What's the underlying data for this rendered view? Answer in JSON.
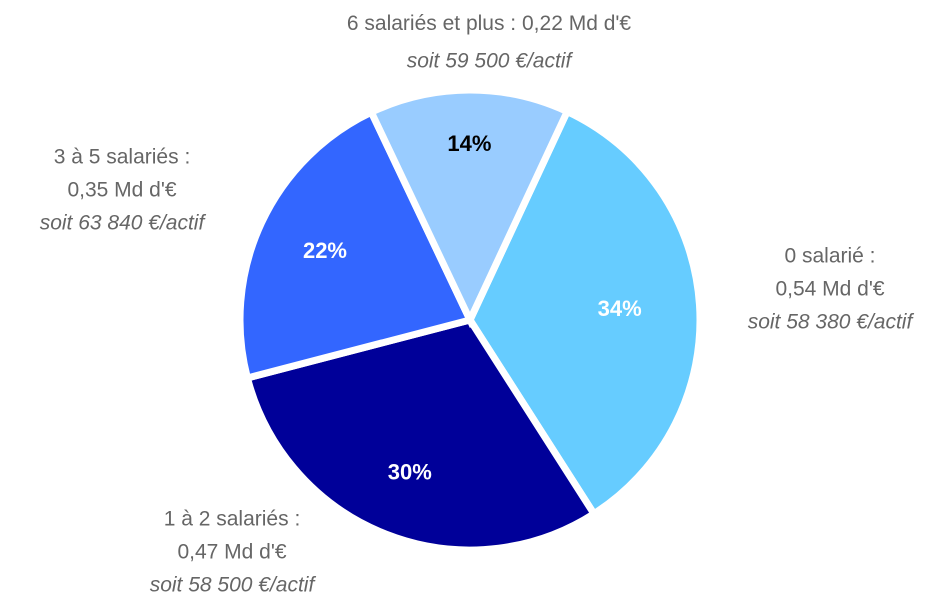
{
  "chart_data": {
    "type": "pie",
    "categories": [
      "0 salarié :",
      "1 à 2 salariés :",
      "3 à 5 salariés :",
      "6 salariés et plus :"
    ],
    "amounts": [
      "0,54 Md d'€",
      "0,47 Md d'€",
      "0,35 Md d'€",
      "0,22 Md d'€"
    ],
    "per_active": [
      "soit 58 380 €/actif",
      "soit 58 500 €/actif",
      "soit 63 840 €/actif",
      "soit 59 500 €/actif"
    ],
    "values": [
      34,
      30,
      22,
      14
    ],
    "value_labels": [
      "34%",
      "30%",
      "22%",
      "14%"
    ],
    "colors": [
      "#66ccff",
      "#000099",
      "#3366ff",
      "#99ccff"
    ],
    "label_colors": [
      "#ffffff",
      "#ffffff",
      "#ffffff",
      "#000000"
    ]
  }
}
